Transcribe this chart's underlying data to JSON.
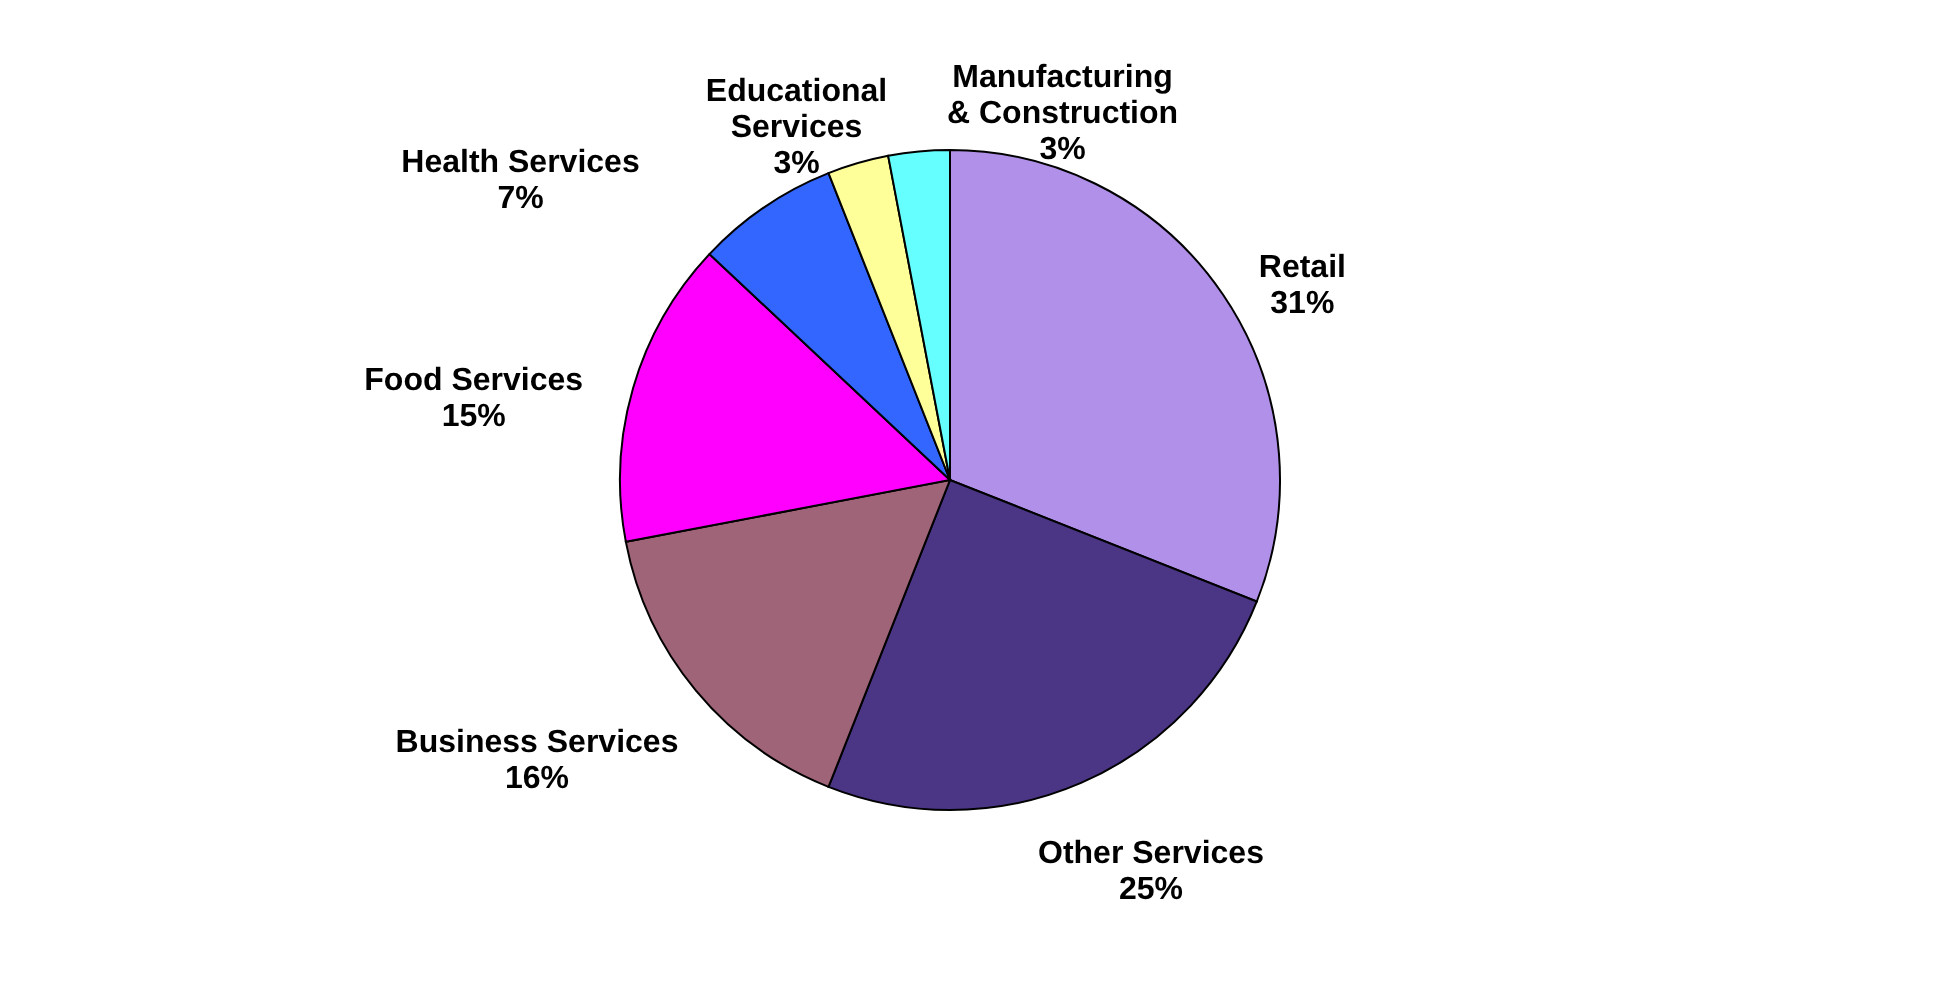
{
  "chart_data": {
    "type": "pie",
    "categories": [
      "Retail",
      "Other Services",
      "Business Services",
      "Food Services",
      "Health Services",
      "Educational Services",
      "Manufacturing & Construction"
    ],
    "values": [
      31,
      25,
      16,
      15,
      7,
      3,
      3
    ],
    "value_labels": [
      "31%",
      "25%",
      "16%",
      "15%",
      "7%",
      "3%",
      "3%"
    ],
    "colors": [
      "#b090e8",
      "#4b3585",
      "#a06478",
      "#ff00ff",
      "#3366ff",
      "#ffff99",
      "#66ffff"
    ],
    "legend": false
  }
}
